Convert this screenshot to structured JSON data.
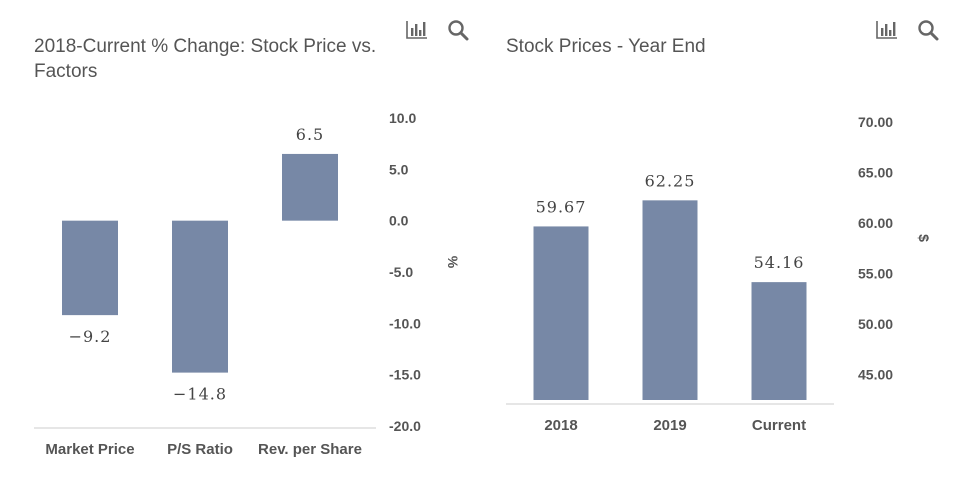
{
  "colors": {
    "bar": "#7788a6",
    "axis": "#cccccc",
    "text": "#555555",
    "icon": "#666666"
  },
  "icons": [
    "bar-chart-icon",
    "search-icon"
  ],
  "chart_data": [
    {
      "type": "bar",
      "title": "2018-Current % Change: Stock Price vs. Factors",
      "categories": [
        "Market Price",
        "P/S Ratio",
        "Rev. per Share"
      ],
      "values": [
        -9.2,
        -14.8,
        6.5
      ],
      "value_labels": [
        "−9.2",
        "−14.8",
        "6.5"
      ],
      "ylim": [
        -20,
        10
      ],
      "yticks": [
        "10.0",
        "5.0",
        "0.0",
        "-5.0",
        "-10.0",
        "-15.0",
        "-20.0"
      ],
      "ylabel": "%",
      "y_axis_position": "right",
      "grid": false
    },
    {
      "type": "bar",
      "title": "Stock Prices - Year End",
      "categories": [
        "2018",
        "2019",
        "Current"
      ],
      "values": [
        59.67,
        62.25,
        54.16
      ],
      "value_labels": [
        "59.67",
        "62.25",
        "54.16"
      ],
      "ylim": [
        42.5,
        70
      ],
      "yticks": [
        "70.00",
        "65.00",
        "60.00",
        "55.00",
        "50.00",
        "45.00"
      ],
      "ylabel": "$",
      "y_axis_position": "right",
      "grid": false
    }
  ]
}
